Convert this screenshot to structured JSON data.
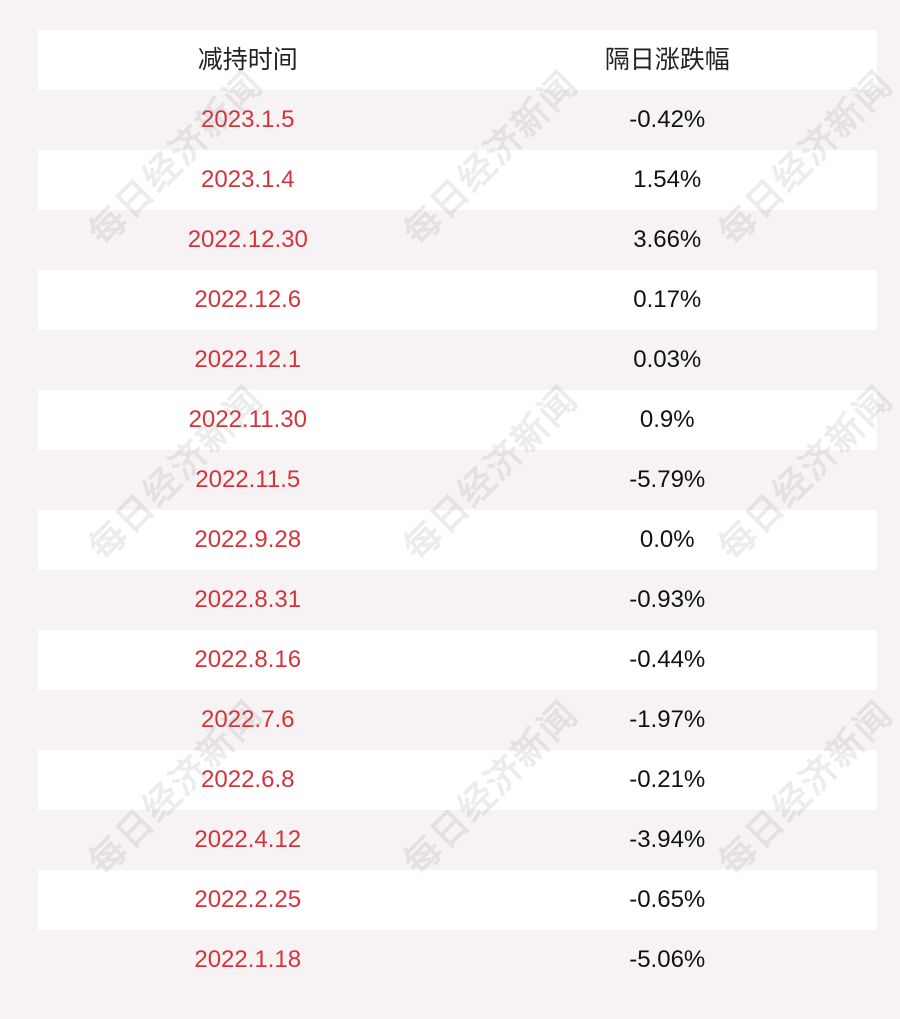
{
  "table": {
    "headers": {
      "date": "减持时间",
      "change": "隔日涨跌幅"
    },
    "rows": [
      {
        "date": "2023.1.5",
        "change": "-0.42%"
      },
      {
        "date": "2023.1.4",
        "change": "1.54%"
      },
      {
        "date": "2022.12.30",
        "change": "3.66%"
      },
      {
        "date": "2022.12.6",
        "change": "0.17%"
      },
      {
        "date": "2022.12.1",
        "change": "0.03%"
      },
      {
        "date": "2022.11.30",
        "change": "0.9%"
      },
      {
        "date": "2022.11.5",
        "change": "-5.79%"
      },
      {
        "date": "2022.9.28",
        "change": "0.0%"
      },
      {
        "date": "2022.8.31",
        "change": "-0.93%"
      },
      {
        "date": "2022.8.16",
        "change": "-0.44%"
      },
      {
        "date": "2022.7.6",
        "change": "-1.97%"
      },
      {
        "date": "2022.6.8",
        "change": "-0.21%"
      },
      {
        "date": "2022.4.12",
        "change": "-3.94%"
      },
      {
        "date": "2022.2.25",
        "change": "-0.65%"
      },
      {
        "date": "2022.1.18",
        "change": "-5.06%"
      }
    ]
  },
  "watermark": "每日经济新闻",
  "colors": {
    "date_text": "#d6333b",
    "background": "#f7f3f4",
    "row_alt": "#ffffff"
  }
}
